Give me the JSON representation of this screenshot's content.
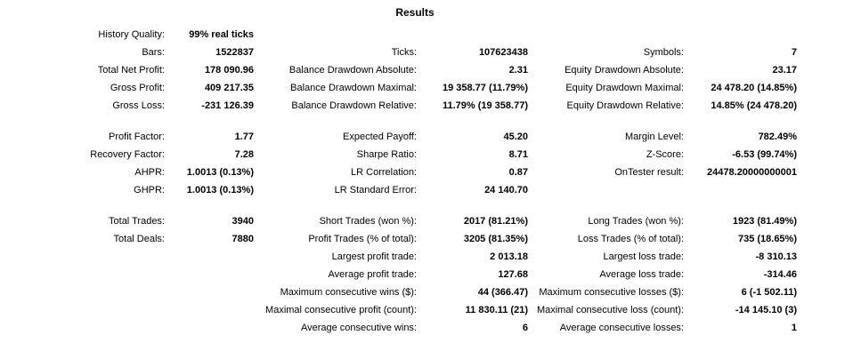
{
  "title": "Results",
  "colors": {
    "background": "#ffffff",
    "text": "#000000"
  },
  "results": {
    "sections": [
      {
        "rows": [
          [
            "History Quality:",
            "99% real ticks",
            "",
            "",
            "",
            ""
          ],
          [
            "Bars:",
            "1522837",
            "Ticks:",
            "107623438",
            "Symbols:",
            "7"
          ],
          [
            "Total Net Profit:",
            "178 090.96",
            "Balance Drawdown Absolute:",
            "2.31",
            "Equity Drawdown Absolute:",
            "23.17"
          ],
          [
            "Gross Profit:",
            "409 217.35",
            "Balance Drawdown Maximal:",
            "19 358.77 (11.79%)",
            "Equity Drawdown Maximal:",
            "24 478.20 (14.85%)"
          ],
          [
            "Gross Loss:",
            "-231 126.39",
            "Balance Drawdown Relative:",
            "11.79% (19 358.77)",
            "Equity Drawdown Relative:",
            "14.85% (24 478.20)"
          ]
        ]
      },
      {
        "rows": [
          [
            "Profit Factor:",
            "1.77",
            "Expected Payoff:",
            "45.20",
            "Margin Level:",
            "782.49%"
          ],
          [
            "Recovery Factor:",
            "7.28",
            "Sharpe Ratio:",
            "8.71",
            "Z-Score:",
            "-6.53 (99.74%)"
          ],
          [
            "AHPR:",
            "1.0013 (0.13%)",
            "LR Correlation:",
            "0.87",
            "OnTester result:",
            "24478.20000000001"
          ],
          [
            "GHPR:",
            "1.0013 (0.13%)",
            "LR Standard Error:",
            "24 140.70",
            "",
            ""
          ]
        ]
      },
      {
        "rows": [
          [
            "Total Trades:",
            "3940",
            "Short Trades (won %):",
            "2017 (81.21%)",
            "Long Trades (won %):",
            "1923 (81.49%)"
          ],
          [
            "Total Deals:",
            "7880",
            "Profit Trades (% of total):",
            "3205 (81.35%)",
            "Loss Trades (% of total):",
            "735 (18.65%)"
          ],
          [
            "",
            "",
            "Largest profit trade:",
            "2 013.18",
            "Largest loss trade:",
            "-8 310.13"
          ],
          [
            "",
            "",
            "Average profit trade:",
            "127.68",
            "Average loss trade:",
            "-314.46"
          ],
          [
            "",
            "",
            "Maximum consecutive wins ($):",
            "44 (366.47)",
            "Maximum consecutive losses ($):",
            "6 (-1 502.11)"
          ],
          [
            "",
            "",
            "Maximal consecutive profit (count):",
            "11 830.11 (21)",
            "Maximal consecutive loss (count):",
            "-14 145.10 (3)"
          ],
          [
            "",
            "",
            "Average consecutive wins:",
            "6",
            "Average consecutive losses:",
            "1"
          ]
        ]
      }
    ]
  }
}
